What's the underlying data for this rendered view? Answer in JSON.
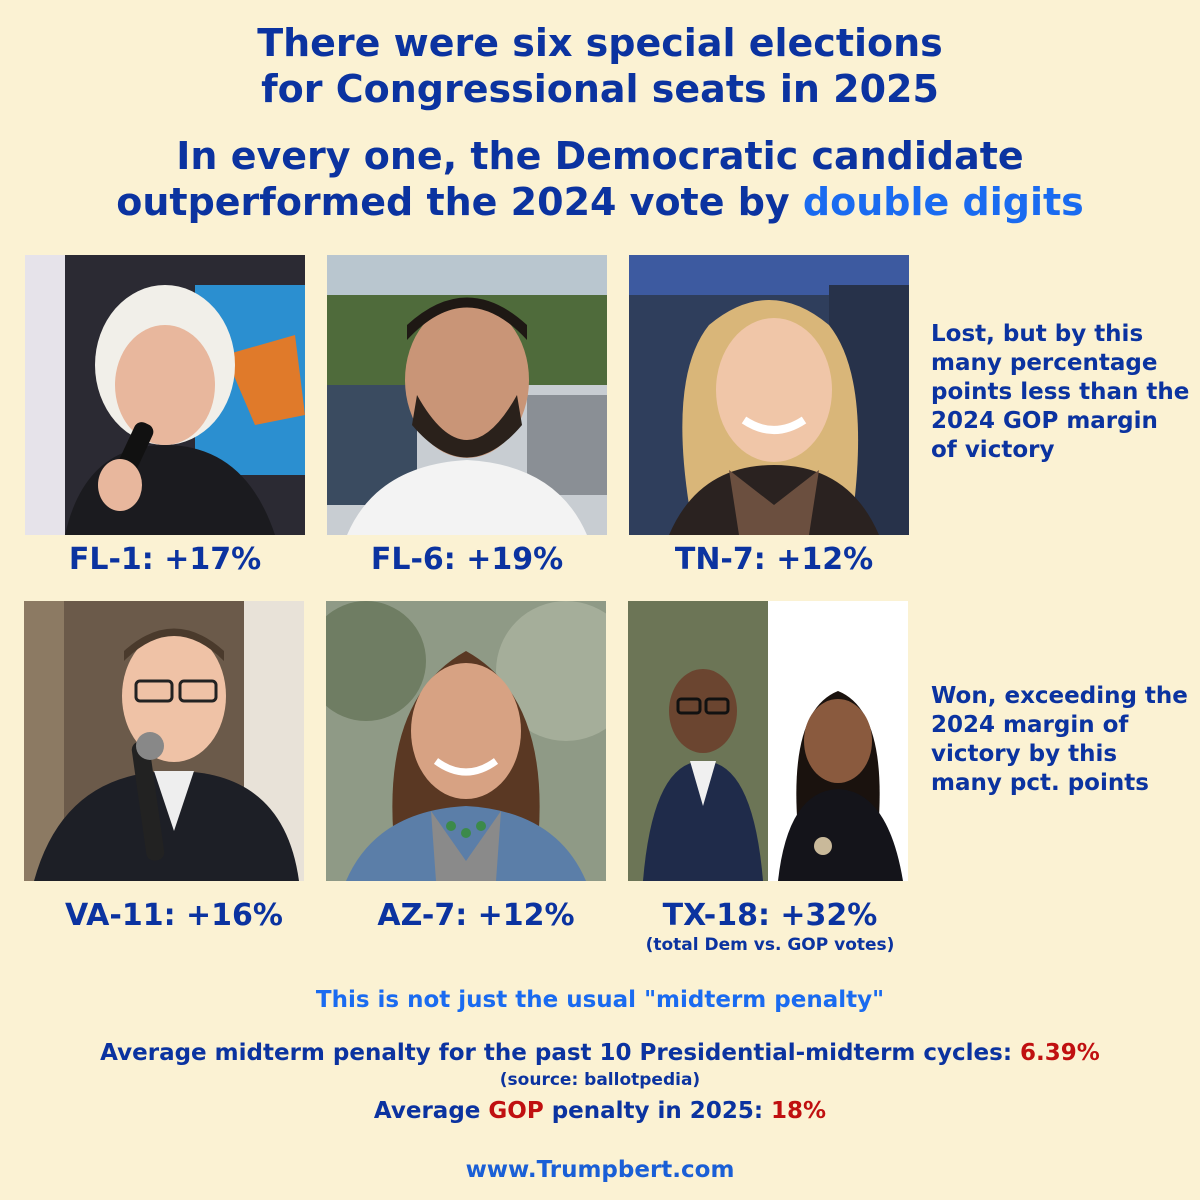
{
  "header": {
    "title_line1": "There were six special elections",
    "title_line2": "for Congressional seats in 2025",
    "subtitle_line1": "In every one, the Democratic candidate",
    "subtitle_line2_prefix": "outperformed the 2024 vote by ",
    "subtitle_highlight": "double digits"
  },
  "races": [
    {
      "label": "FL-1: +17%"
    },
    {
      "label": "FL-6: +19%"
    },
    {
      "label": "TN-7: +12%"
    },
    {
      "label": "VA-11: +16%"
    },
    {
      "label": "AZ-7: +12%"
    },
    {
      "label": "TX-18: +32%",
      "note": "(total Dem vs. GOP votes)"
    }
  ],
  "notes": {
    "lost": "Lost, but by this many percentage points less than the 2024 GOP margin of victory",
    "won": "Won, exceeding the 2024 margin of victory by this many pct. points"
  },
  "footer": {
    "not_usual": "This is not just the usual \"midterm penalty\"",
    "avg_midterm_prefix": "Average midterm penalty for the past 10 Presidential-midterm cycles: ",
    "avg_midterm_value": "6.39%",
    "source": "(source: ballotpedia)",
    "gop_prefix": "Average ",
    "gop_word": "GOP",
    "gop_middle": " penalty in 2025: ",
    "gop_value": "18%",
    "site": "www.Trumpbert.com"
  },
  "colors": {
    "background": "#fbf2d3",
    "primary_blue": "#0b33a0",
    "highlight_blue": "#1a6bf0",
    "red": "#c01010"
  }
}
